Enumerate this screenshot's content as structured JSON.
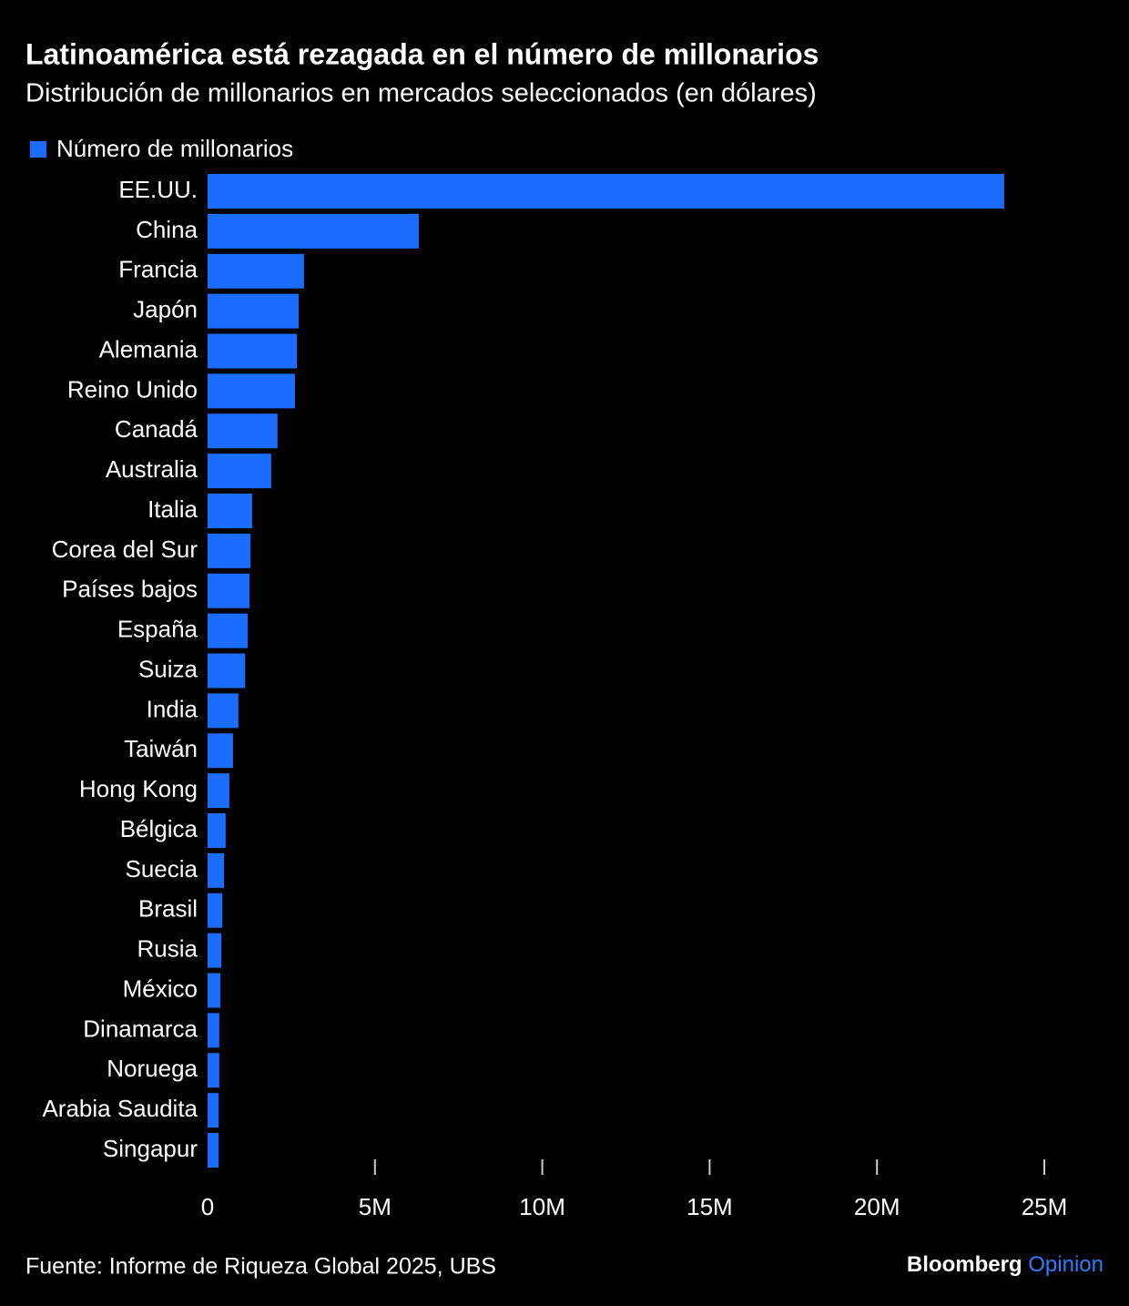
{
  "chart_data": {
    "type": "bar",
    "orientation": "horizontal",
    "title": "Latinoamérica está rezagada en el número de millonarios",
    "subtitle": "Distribución de millonarios en mercados seleccionados (en dólares)",
    "categories": [
      "EE.UU.",
      "China",
      "Francia",
      "Japón",
      "Alemania",
      "Reino Unido",
      "Canadá",
      "Australia",
      "Italia",
      "Corea del Sur",
      "Países bajos",
      "España",
      "Suiza",
      "India",
      "Taiwán",
      "Hong Kong",
      "Bélgica",
      "Suecia",
      "Brasil",
      "Rusia",
      "México",
      "Dinamarca",
      "Noruega",
      "Arabia Saudita",
      "Singapur"
    ],
    "series": [
      {
        "name": "Número de millonarios",
        "color": "#1a6dff",
        "values": [
          23800000,
          6310000,
          2880000,
          2720000,
          2670000,
          2610000,
          2090000,
          1900000,
          1330000,
          1280000,
          1250000,
          1200000,
          1120000,
          920000,
          760000,
          650000,
          540000,
          490000,
          440000,
          410000,
          380000,
          350000,
          350000,
          330000,
          330000
        ]
      }
    ],
    "xlim": [
      0,
      25000000
    ],
    "xticks": [
      0,
      {
        "value": 5000000,
        "label": "5M"
      },
      {
        "value": 10000000,
        "label": "10M"
      },
      {
        "value": 15000000,
        "label": "15M"
      },
      {
        "value": 20000000,
        "label": "20M"
      },
      {
        "value": 25000000,
        "label": "25M"
      }
    ],
    "legend": "top-left",
    "source": "Fuente: Informe de Riqueza Global 2025, UBS",
    "brand": "Bloomberg",
    "brand_suffix": "Opinion"
  }
}
